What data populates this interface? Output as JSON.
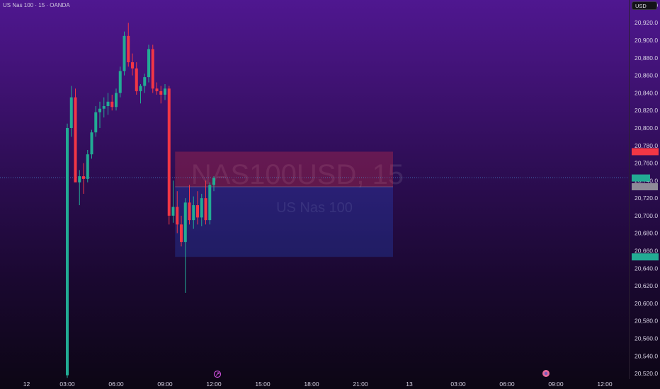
{
  "header": {
    "symbol_title": "US Nas 100 · 15 · OANDA",
    "currency": "USD"
  },
  "watermark": {
    "main": "NAS100USD, 15",
    "sub": "US Nas 100"
  },
  "colors": {
    "up": "#22ab94",
    "down": "#f23645",
    "stop_zone": "rgba(242,54,69,0.28)",
    "target_zone": "rgba(41,98,255,0.22)",
    "stop_badge": "#f23645",
    "target_badge": "#22ab94",
    "current_badge": "#22ab94",
    "entry_badge": "#8e8a98",
    "last_price_line": "#4a8fd8"
  },
  "chart_data": {
    "type": "candlestick",
    "title": "US Nas 100 · 15 · OANDA",
    "ylim": [
      20512,
      20946
    ],
    "yticks": [
      20520,
      20540,
      20560,
      20580,
      20600,
      20620,
      20640,
      20660,
      20680,
      20700,
      20720,
      20740,
      20760,
      20780,
      20800,
      20820,
      20840,
      20860,
      20880,
      20900,
      20920,
      20940
    ],
    "ytick_labels": [
      "20,520.0",
      "20,540.0",
      "20,560.0",
      "20,580.0",
      "20,600.0",
      "20,620.0",
      "20,640.0",
      "20,660.0",
      "20,680.0",
      "20,700.0",
      "20,720.0",
      "20,740.0",
      "20,760.0",
      "20,780.0",
      "20,800.0",
      "20,820.0",
      "20,840.0",
      "20,860.0",
      "20,880.0",
      "20,900.0",
      "20,920.0",
      "20,940.0"
    ],
    "xticks": [
      {
        "bar": -10,
        "label": "12"
      },
      {
        "bar": 0,
        "label": "03:00"
      },
      {
        "bar": 12,
        "label": "06:00"
      },
      {
        "bar": 24,
        "label": "09:00"
      },
      {
        "bar": 36,
        "label": "12:00"
      },
      {
        "bar": 48,
        "label": "15:00"
      },
      {
        "bar": 60,
        "label": "18:00"
      },
      {
        "bar": 72,
        "label": "21:00"
      },
      {
        "bar": 84,
        "label": "13"
      },
      {
        "bar": 96,
        "label": "03:00"
      },
      {
        "bar": 108,
        "label": "06:00"
      },
      {
        "bar": 120,
        "label": "09:00"
      },
      {
        "bar": 132,
        "label": "12:00"
      }
    ],
    "candles": [
      {
        "o": 20518,
        "h": 20805,
        "l": 20515,
        "c": 20800
      },
      {
        "o": 20800,
        "h": 20848,
        "l": 20790,
        "c": 20835
      },
      {
        "o": 20835,
        "h": 20845,
        "l": 20742,
        "c": 20738
      },
      {
        "o": 20738,
        "h": 20752,
        "l": 20712,
        "c": 20745
      },
      {
        "o": 20745,
        "h": 20760,
        "l": 20725,
        "c": 20742
      },
      {
        "o": 20742,
        "h": 20775,
        "l": 20738,
        "c": 20770
      },
      {
        "o": 20770,
        "h": 20798,
        "l": 20765,
        "c": 20795
      },
      {
        "o": 20795,
        "h": 20825,
        "l": 20790,
        "c": 20818
      },
      {
        "o": 20818,
        "h": 20830,
        "l": 20800,
        "c": 20822
      },
      {
        "o": 20822,
        "h": 20835,
        "l": 20812,
        "c": 20825
      },
      {
        "o": 20825,
        "h": 20840,
        "l": 20815,
        "c": 20830
      },
      {
        "o": 20830,
        "h": 20838,
        "l": 20820,
        "c": 20824
      },
      {
        "o": 20824,
        "h": 20845,
        "l": 20820,
        "c": 20840
      },
      {
        "o": 20840,
        "h": 20870,
        "l": 20835,
        "c": 20865
      },
      {
        "o": 20865,
        "h": 20910,
        "l": 20860,
        "c": 20905
      },
      {
        "o": 20905,
        "h": 20920,
        "l": 20870,
        "c": 20875
      },
      {
        "o": 20875,
        "h": 20885,
        "l": 20860,
        "c": 20868
      },
      {
        "o": 20868,
        "h": 20875,
        "l": 20838,
        "c": 20842
      },
      {
        "o": 20842,
        "h": 20850,
        "l": 20828,
        "c": 20848
      },
      {
        "o": 20848,
        "h": 20862,
        "l": 20840,
        "c": 20858
      },
      {
        "o": 20858,
        "h": 20895,
        "l": 20852,
        "c": 20890
      },
      {
        "o": 20890,
        "h": 20895,
        "l": 20840,
        "c": 20845
      },
      {
        "o": 20845,
        "h": 20852,
        "l": 20838,
        "c": 20842
      },
      {
        "o": 20842,
        "h": 20848,
        "l": 20828,
        "c": 20838
      },
      {
        "o": 20838,
        "h": 20850,
        "l": 20832,
        "c": 20845
      },
      {
        "o": 20845,
        "h": 20848,
        "l": 20690,
        "c": 20700
      },
      {
        "o": 20700,
        "h": 20740,
        "l": 20692,
        "c": 20710
      },
      {
        "o": 20710,
        "h": 20728,
        "l": 20680,
        "c": 20690
      },
      {
        "o": 20690,
        "h": 20700,
        "l": 20665,
        "c": 20670
      },
      {
        "o": 20670,
        "h": 20720,
        "l": 20612,
        "c": 20715
      },
      {
        "o": 20715,
        "h": 20735,
        "l": 20690,
        "c": 20695
      },
      {
        "o": 20695,
        "h": 20722,
        "l": 20685,
        "c": 20712
      },
      {
        "o": 20712,
        "h": 20728,
        "l": 20690,
        "c": 20698
      },
      {
        "o": 20698,
        "h": 20725,
        "l": 20688,
        "c": 20720
      },
      {
        "o": 20720,
        "h": 20740,
        "l": 20690,
        "c": 20695
      },
      {
        "o": 20695,
        "h": 20738,
        "l": 20690,
        "c": 20735
      },
      {
        "o": 20735,
        "h": 20745,
        "l": 20728,
        "c": 20743
      }
    ],
    "position": {
      "type": "short",
      "entry": 20733,
      "stop": 20773,
      "target": 20653,
      "start_bar": 27,
      "end_bar": 80
    },
    "price_badges": {
      "stop": 20773,
      "current": 20743,
      "entry": 20733,
      "target": 20653
    },
    "last_price": 20743
  }
}
